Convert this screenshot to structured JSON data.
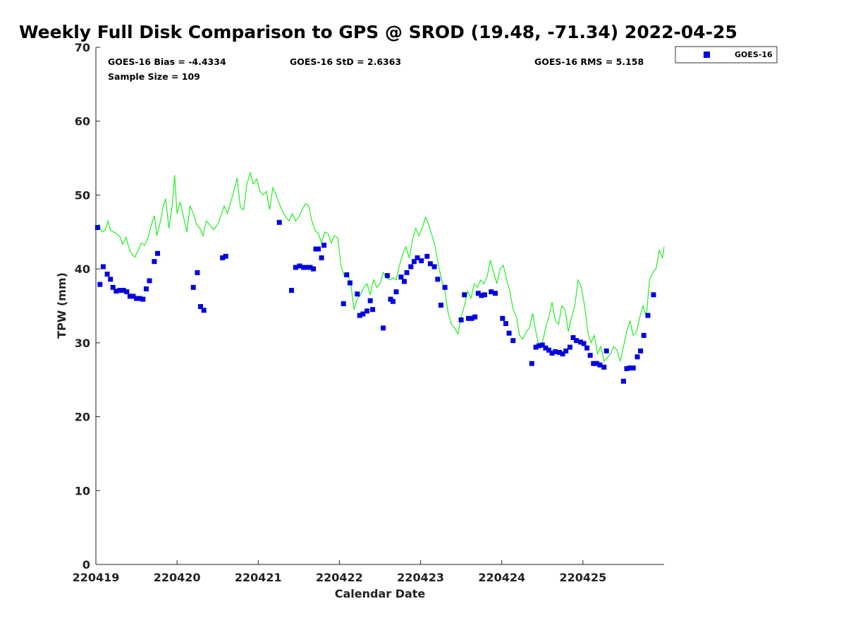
{
  "chart_data": {
    "type": "scatter",
    "title": "Weekly Full Disk Comparison to GPS @ SROD (19.48, -71.34) 2022-04-25",
    "xlabel": "Calendar Date",
    "ylabel": "TPW (mm)",
    "xlim": [
      0,
      7
    ],
    "ylim": [
      0,
      70
    ],
    "x_ticks": [
      {
        "value": 0,
        "label": "220419"
      },
      {
        "value": 1,
        "label": "220420"
      },
      {
        "value": 2,
        "label": "220421"
      },
      {
        "value": 3,
        "label": "220422"
      },
      {
        "value": 4,
        "label": "220423"
      },
      {
        "value": 5,
        "label": "220424"
      },
      {
        "value": 6,
        "label": "220425"
      }
    ],
    "y_ticks": [
      0,
      10,
      20,
      30,
      40,
      50,
      60,
      70
    ],
    "stats": {
      "bias": "GOES-16 Bias = -4.4334",
      "std": "GOES-16 StD = 2.6363",
      "rms": "GOES-16 RMS = 5.158",
      "sample": "Sample Size = 109"
    },
    "legend": {
      "label": "GOES-16",
      "position": "top-right"
    },
    "colors": {
      "points": "#0000e0",
      "gps_line": "#22ee22"
    },
    "series": [
      {
        "name": "GOES-16",
        "marker": "square",
        "points": [
          [
            0.02,
            45.6
          ],
          [
            0.05,
            37.9
          ],
          [
            0.09,
            40.3
          ],
          [
            0.14,
            39.3
          ],
          [
            0.18,
            38.6
          ],
          [
            0.21,
            37.5
          ],
          [
            0.25,
            37.0
          ],
          [
            0.3,
            37.1
          ],
          [
            0.34,
            37.1
          ],
          [
            0.38,
            36.9
          ],
          [
            0.42,
            36.3
          ],
          [
            0.46,
            36.3
          ],
          [
            0.5,
            36.0
          ],
          [
            0.54,
            36.0
          ],
          [
            0.58,
            35.9
          ],
          [
            0.62,
            37.3
          ],
          [
            0.66,
            38.4
          ],
          [
            0.72,
            41.0
          ],
          [
            0.76,
            42.1
          ],
          [
            1.2,
            37.5
          ],
          [
            1.25,
            39.5
          ],
          [
            1.29,
            34.9
          ],
          [
            1.33,
            34.4
          ],
          [
            1.56,
            41.5
          ],
          [
            1.6,
            41.7
          ],
          [
            2.26,
            46.3
          ],
          [
            2.41,
            37.1
          ],
          [
            2.46,
            40.2
          ],
          [
            2.51,
            40.4
          ],
          [
            2.56,
            40.2
          ],
          [
            2.6,
            40.2
          ],
          [
            2.64,
            40.2
          ],
          [
            2.68,
            40.0
          ],
          [
            2.71,
            42.7
          ],
          [
            2.74,
            42.7
          ],
          [
            2.78,
            41.5
          ],
          [
            2.81,
            43.2
          ],
          [
            3.05,
            35.3
          ],
          [
            3.09,
            39.2
          ],
          [
            3.13,
            38.1
          ],
          [
            3.22,
            36.6
          ],
          [
            3.25,
            33.7
          ],
          [
            3.29,
            33.9
          ],
          [
            3.34,
            34.3
          ],
          [
            3.38,
            35.7
          ],
          [
            3.41,
            34.5
          ],
          [
            3.54,
            32.0
          ],
          [
            3.59,
            39.1
          ],
          [
            3.63,
            35.9
          ],
          [
            3.66,
            35.6
          ],
          [
            3.7,
            36.9
          ],
          [
            3.76,
            38.9
          ],
          [
            3.8,
            38.3
          ],
          [
            3.83,
            39.5
          ],
          [
            3.88,
            40.3
          ],
          [
            3.92,
            41.0
          ],
          [
            3.96,
            41.5
          ],
          [
            4.01,
            41.1
          ],
          [
            4.08,
            41.7
          ],
          [
            4.12,
            40.7
          ],
          [
            4.17,
            40.3
          ],
          [
            4.21,
            38.6
          ],
          [
            4.25,
            35.1
          ],
          [
            4.3,
            37.5
          ],
          [
            4.5,
            33.1
          ],
          [
            4.54,
            36.5
          ],
          [
            4.59,
            33.3
          ],
          [
            4.63,
            33.3
          ],
          [
            4.67,
            33.5
          ],
          [
            4.71,
            36.7
          ],
          [
            4.75,
            36.4
          ],
          [
            4.79,
            36.5
          ],
          [
            4.87,
            36.9
          ],
          [
            4.92,
            36.7
          ],
          [
            5.01,
            33.3
          ],
          [
            5.05,
            32.6
          ],
          [
            5.09,
            31.3
          ],
          [
            5.14,
            30.3
          ],
          [
            5.37,
            27.2
          ],
          [
            5.42,
            29.4
          ],
          [
            5.46,
            29.6
          ],
          [
            5.5,
            29.7
          ],
          [
            5.54,
            29.3
          ],
          [
            5.58,
            29.0
          ],
          [
            5.62,
            28.6
          ],
          [
            5.66,
            28.8
          ],
          [
            5.71,
            28.7
          ],
          [
            5.75,
            28.5
          ],
          [
            5.79,
            28.9
          ],
          [
            5.84,
            29.4
          ],
          [
            5.88,
            30.7
          ],
          [
            5.92,
            30.3
          ],
          [
            5.97,
            30.1
          ],
          [
            6.01,
            29.9
          ],
          [
            6.05,
            29.3
          ],
          [
            6.09,
            28.3
          ],
          [
            6.13,
            27.2
          ],
          [
            6.17,
            27.2
          ],
          [
            6.21,
            27.0
          ],
          [
            6.26,
            26.7
          ],
          [
            6.29,
            28.9
          ],
          [
            6.5,
            24.8
          ],
          [
            6.54,
            26.5
          ],
          [
            6.58,
            26.6
          ],
          [
            6.62,
            26.6
          ],
          [
            6.67,
            28.1
          ],
          [
            6.71,
            28.9
          ],
          [
            6.75,
            31.0
          ],
          [
            6.8,
            33.7
          ],
          [
            6.87,
            36.5
          ]
        ]
      },
      {
        "name": "GPS",
        "marker": "line",
        "points": [
          [
            0.0,
            45.8
          ],
          [
            0.04,
            46.0
          ],
          [
            0.07,
            45.0
          ],
          [
            0.11,
            45.2
          ],
          [
            0.15,
            46.5
          ],
          [
            0.18,
            45.2
          ],
          [
            0.22,
            45.0
          ],
          [
            0.26,
            44.7
          ],
          [
            0.3,
            44.3
          ],
          [
            0.33,
            43.3
          ],
          [
            0.37,
            44.3
          ],
          [
            0.41,
            42.8
          ],
          [
            0.44,
            42.0
          ],
          [
            0.48,
            41.6
          ],
          [
            0.52,
            42.5
          ],
          [
            0.56,
            43.5
          ],
          [
            0.6,
            43.2
          ],
          [
            0.64,
            44.2
          ],
          [
            0.68,
            45.8
          ],
          [
            0.72,
            47.2
          ],
          [
            0.75,
            44.5
          ],
          [
            0.79,
            46.2
          ],
          [
            0.83,
            48.5
          ],
          [
            0.86,
            49.5
          ],
          [
            0.9,
            45.5
          ],
          [
            0.94,
            48.5
          ],
          [
            0.97,
            52.7
          ],
          [
            1.0,
            47.5
          ],
          [
            1.04,
            49.0
          ],
          [
            1.08,
            47.0
          ],
          [
            1.12,
            45.0
          ],
          [
            1.16,
            48.5
          ],
          [
            1.2,
            47.5
          ],
          [
            1.24,
            46.0
          ],
          [
            1.28,
            45.5
          ],
          [
            1.32,
            44.5
          ],
          [
            1.36,
            46.5
          ],
          [
            1.4,
            46.0
          ],
          [
            1.45,
            45.3
          ],
          [
            1.5,
            46.0
          ],
          [
            1.55,
            47.5
          ],
          [
            1.58,
            48.5
          ],
          [
            1.62,
            47.5
          ],
          [
            1.66,
            49.0
          ],
          [
            1.7,
            50.5
          ],
          [
            1.74,
            52.3
          ],
          [
            1.78,
            48.3
          ],
          [
            1.82,
            48.0
          ],
          [
            1.86,
            51.5
          ],
          [
            1.9,
            53.0
          ],
          [
            1.94,
            51.5
          ],
          [
            1.98,
            52.2
          ],
          [
            2.02,
            50.5
          ],
          [
            2.06,
            50.0
          ],
          [
            2.1,
            50.5
          ],
          [
            2.14,
            48.0
          ],
          [
            2.18,
            51.0
          ],
          [
            2.22,
            50.0
          ],
          [
            2.26,
            48.8
          ],
          [
            2.3,
            47.8
          ],
          [
            2.34,
            47.0
          ],
          [
            2.38,
            46.5
          ],
          [
            2.42,
            47.5
          ],
          [
            2.46,
            46.5
          ],
          [
            2.5,
            47.0
          ],
          [
            2.54,
            48.0
          ],
          [
            2.58,
            48.8
          ],
          [
            2.62,
            48.6
          ],
          [
            2.66,
            46.5
          ],
          [
            2.7,
            45.2
          ],
          [
            2.74,
            44.8
          ],
          [
            2.78,
            43.5
          ],
          [
            2.82,
            45.0
          ],
          [
            2.86,
            44.8
          ],
          [
            2.9,
            43.5
          ],
          [
            2.94,
            44.5
          ],
          [
            2.98,
            44.2
          ],
          [
            3.02,
            40.5
          ],
          [
            3.06,
            39.0
          ],
          [
            3.1,
            39.5
          ],
          [
            3.14,
            38.0
          ],
          [
            3.18,
            34.5
          ],
          [
            3.22,
            36.0
          ],
          [
            3.26,
            36.5
          ],
          [
            3.3,
            37.5
          ],
          [
            3.34,
            38.0
          ],
          [
            3.38,
            36.5
          ],
          [
            3.42,
            38.5
          ],
          [
            3.46,
            37.5
          ],
          [
            3.5,
            38.0
          ],
          [
            3.54,
            39.5
          ],
          [
            3.58,
            38.8
          ],
          [
            3.62,
            38.5
          ],
          [
            3.66,
            38.8
          ],
          [
            3.7,
            38.5
          ],
          [
            3.74,
            40.5
          ],
          [
            3.78,
            42.0
          ],
          [
            3.82,
            43.0
          ],
          [
            3.86,
            41.5
          ],
          [
            3.9,
            44.0
          ],
          [
            3.94,
            45.5
          ],
          [
            3.98,
            44.5
          ],
          [
            4.02,
            45.5
          ],
          [
            4.06,
            47.0
          ],
          [
            4.1,
            46.0
          ],
          [
            4.14,
            44.5
          ],
          [
            4.18,
            43.0
          ],
          [
            4.22,
            40.5
          ],
          [
            4.26,
            38.5
          ],
          [
            4.3,
            37.0
          ],
          [
            4.34,
            34.0
          ],
          [
            4.38,
            32.5
          ],
          [
            4.42,
            32.0
          ],
          [
            4.46,
            31.2
          ],
          [
            4.5,
            33.5
          ],
          [
            4.54,
            35.0
          ],
          [
            4.58,
            37.0
          ],
          [
            4.62,
            36.0
          ],
          [
            4.66,
            38.0
          ],
          [
            4.7,
            37.5
          ],
          [
            4.74,
            38.5
          ],
          [
            4.78,
            38.0
          ],
          [
            4.82,
            39.0
          ],
          [
            4.86,
            41.2
          ],
          [
            4.9,
            39.5
          ],
          [
            4.94,
            38.0
          ],
          [
            4.98,
            40.0
          ],
          [
            5.02,
            40.5
          ],
          [
            5.06,
            38.5
          ],
          [
            5.1,
            37.0
          ],
          [
            5.14,
            34.5
          ],
          [
            5.18,
            33.5
          ],
          [
            5.22,
            31.0
          ],
          [
            5.26,
            30.5
          ],
          [
            5.3,
            31.5
          ],
          [
            5.34,
            32.0
          ],
          [
            5.38,
            34.0
          ],
          [
            5.42,
            31.5
          ],
          [
            5.46,
            29.5
          ],
          [
            5.5,
            30.0
          ],
          [
            5.54,
            32.0
          ],
          [
            5.58,
            33.5
          ],
          [
            5.62,
            35.5
          ],
          [
            5.66,
            33.0
          ],
          [
            5.7,
            32.5
          ],
          [
            5.74,
            35.0
          ],
          [
            5.78,
            34.5
          ],
          [
            5.82,
            31.5
          ],
          [
            5.86,
            33.5
          ],
          [
            5.9,
            35.0
          ],
          [
            5.94,
            38.5
          ],
          [
            5.98,
            37.5
          ],
          [
            6.02,
            35.0
          ],
          [
            6.06,
            31.5
          ],
          [
            6.1,
            30.0
          ],
          [
            6.14,
            31.0
          ],
          [
            6.18,
            28.5
          ],
          [
            6.22,
            29.5
          ],
          [
            6.26,
            27.5
          ],
          [
            6.3,
            28.0
          ],
          [
            6.34,
            28.5
          ],
          [
            6.38,
            29.5
          ],
          [
            6.42,
            29.0
          ],
          [
            6.46,
            27.5
          ],
          [
            6.5,
            29.5
          ],
          [
            6.54,
            31.5
          ],
          [
            6.58,
            33.0
          ],
          [
            6.62,
            31.0
          ],
          [
            6.66,
            31.5
          ],
          [
            6.7,
            33.5
          ],
          [
            6.74,
            35.0
          ],
          [
            6.78,
            33.5
          ],
          [
            6.82,
            38.5
          ],
          [
            6.86,
            39.5
          ],
          [
            6.9,
            40.0
          ],
          [
            6.94,
            42.5
          ],
          [
            6.98,
            41.5
          ],
          [
            7.0,
            43.0
          ]
        ]
      }
    ]
  }
}
